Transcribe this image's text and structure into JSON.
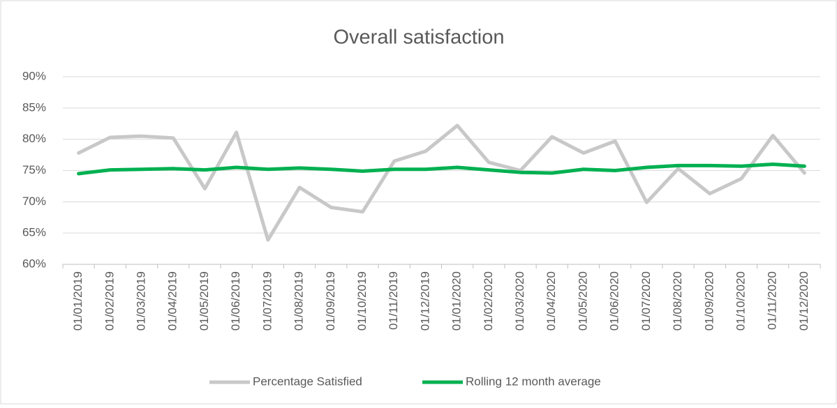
{
  "chart_data": {
    "type": "line",
    "title": "Overall satisfaction",
    "categories": [
      "01/01/2019",
      "01/02/2019",
      "01/03/2019",
      "01/04/2019",
      "01/05/2019",
      "01/06/2019",
      "01/07/2019",
      "01/08/2019",
      "01/09/2019",
      "01/10/2019",
      "01/11/2019",
      "01/12/2019",
      "01/01/2020",
      "01/02/2020",
      "01/03/2020",
      "01/04/2020",
      "01/05/2020",
      "01/06/2020",
      "01/07/2020",
      "01/08/2020",
      "01/09/2020",
      "01/10/2020",
      "01/11/2020",
      "01/12/2020"
    ],
    "series": [
      {
        "name": "Percentage Satisfied",
        "color": "#c8c8c8",
        "values": [
          77.8,
          80.3,
          80.5,
          80.2,
          72.1,
          81.1,
          63.9,
          72.3,
          69.1,
          68.4,
          76.5,
          78.1,
          82.2,
          76.3,
          75.0,
          80.4,
          77.8,
          79.7,
          69.9,
          75.3,
          71.3,
          73.7,
          80.6,
          74.6
        ]
      },
      {
        "name": "Rolling 12 month average",
        "color": "#00b050",
        "values": [
          74.5,
          75.1,
          75.2,
          75.3,
          75.1,
          75.5,
          75.2,
          75.4,
          75.2,
          74.9,
          75.2,
          75.2,
          75.5,
          75.1,
          74.7,
          74.6,
          75.2,
          75.0,
          75.5,
          75.8,
          75.8,
          75.7,
          76.0,
          75.7
        ]
      }
    ],
    "ylim": [
      60,
      90
    ],
    "yticks": [
      {
        "value": 60,
        "label": "60%"
      },
      {
        "value": 65,
        "label": "65%"
      },
      {
        "value": 70,
        "label": "70%"
      },
      {
        "value": 75,
        "label": "75%"
      },
      {
        "value": 80,
        "label": "80%"
      },
      {
        "value": 85,
        "label": "85%"
      },
      {
        "value": 90,
        "label": "90%"
      }
    ],
    "grid": true,
    "legend": "bottom"
  }
}
